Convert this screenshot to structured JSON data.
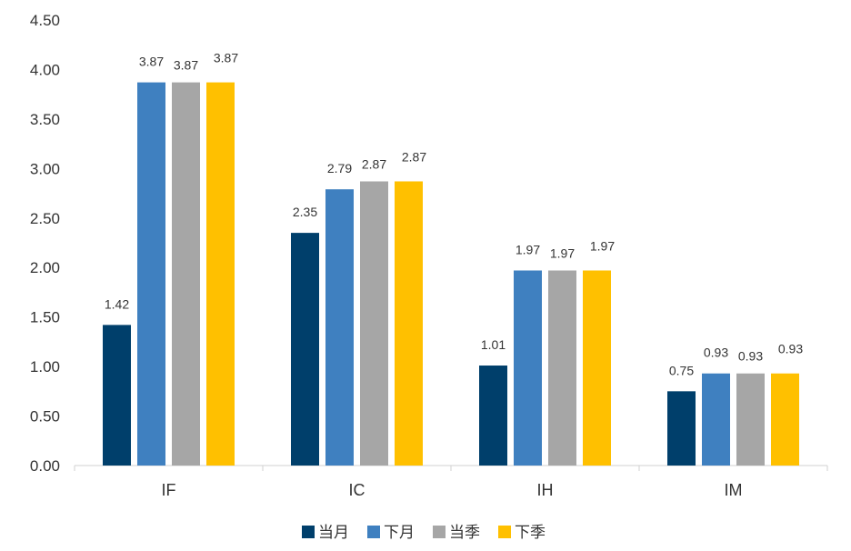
{
  "chart_data": {
    "type": "bar",
    "title": "",
    "xlabel": "",
    "ylabel": "",
    "ylim": [
      0,
      4.5
    ],
    "yticks": [
      "0.00",
      "0.50",
      "1.00",
      "1.50",
      "2.00",
      "2.50",
      "3.00",
      "3.50",
      "4.00",
      "4.50"
    ],
    "grid": false,
    "legend_position": "bottom",
    "categories": [
      "IF",
      "IC",
      "IH",
      "IM"
    ],
    "series": [
      {
        "name": "当月",
        "color": "#003f6b",
        "values": [
          1.42,
          2.35,
          1.01,
          0.75
        ],
        "labels": [
          "1.42",
          "2.35",
          "1.01",
          "0.75"
        ]
      },
      {
        "name": "下月",
        "color": "#3f80c0",
        "values": [
          3.87,
          2.79,
          1.97,
          0.93
        ],
        "labels": [
          "3.87",
          "2.79",
          "1.97",
          "0.93"
        ]
      },
      {
        "name": "当季",
        "color": "#a6a6a6",
        "values": [
          3.87,
          2.87,
          1.97,
          0.93
        ],
        "labels": [
          "3.87",
          "2.87",
          "1.97",
          "0.93"
        ]
      },
      {
        "name": "下季",
        "color": "#ffc000",
        "values": [
          3.87,
          2.87,
          1.97,
          0.93
        ],
        "labels": [
          "3.87",
          "2.87",
          "1.97",
          "0.93"
        ]
      }
    ]
  }
}
